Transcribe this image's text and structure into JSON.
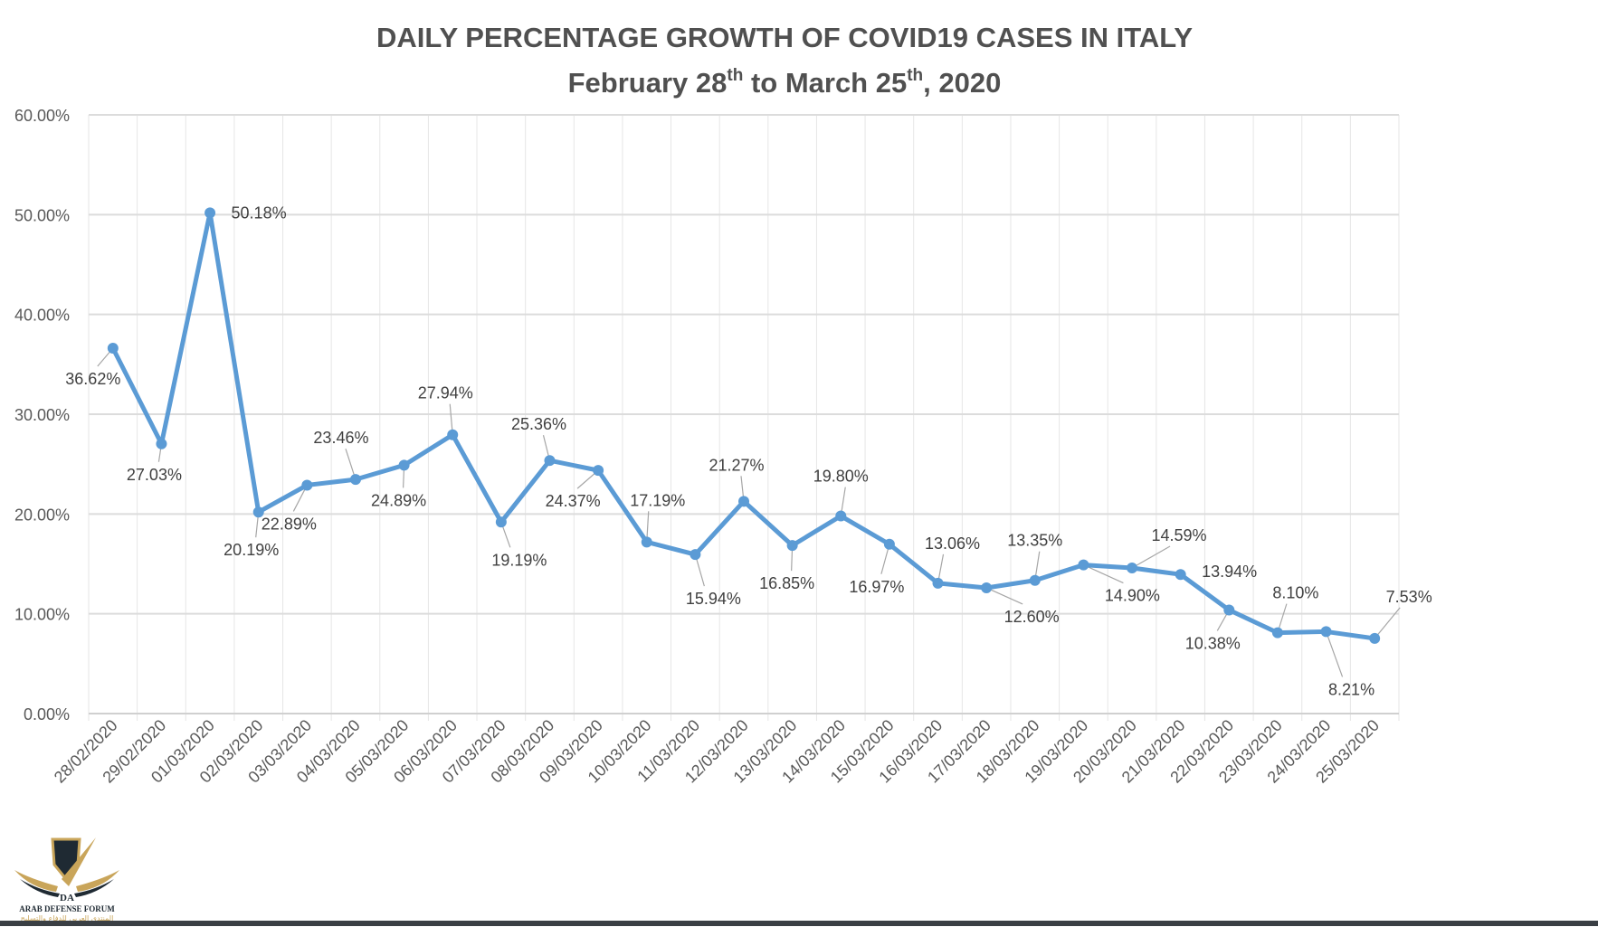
{
  "chart_data": {
    "type": "line",
    "title": "DAILY PERCENTAGE GROWTH OF COVID19 CASES IN ITALY",
    "subtitle": {
      "prefix": "February 28",
      "sup1": "th",
      "middle": " to March 25",
      "sup2": "th",
      "suffix": ", 2020"
    },
    "xlabel": "",
    "ylabel": "",
    "ylim": [
      0,
      0.6
    ],
    "yticks": [
      0,
      0.1,
      0.2,
      0.3,
      0.4,
      0.5,
      0.6
    ],
    "ytick_labels": [
      "0.00%",
      "10.00%",
      "20.00%",
      "30.00%",
      "40.00%",
      "50.00%",
      "60.00%"
    ],
    "grid": true,
    "legend": "none",
    "color": "#5b9bd5",
    "categories": [
      "28/02/2020",
      "29/02/2020",
      "01/03/2020",
      "02/03/2020",
      "03/03/2020",
      "04/03/2020",
      "05/03/2020",
      "06/03/2020",
      "07/03/2020",
      "08/03/2020",
      "09/03/2020",
      "10/03/2020",
      "11/03/2020",
      "12/03/2020",
      "13/03/2020",
      "14/03/2020",
      "15/03/2020",
      "16/03/2020",
      "17/03/2020",
      "18/03/2020",
      "19/03/2020",
      "20/03/2020",
      "21/03/2020",
      "22/03/2020",
      "23/03/2020",
      "24/03/2020",
      "25/03/2020"
    ],
    "series": [
      {
        "name": "Daily percentage growth",
        "values": [
          0.3662,
          0.2703,
          0.5018,
          0.2019,
          0.2289,
          0.2346,
          0.2489,
          0.2794,
          0.1919,
          0.2536,
          0.2437,
          0.1719,
          0.1594,
          0.2127,
          0.1685,
          0.198,
          0.1697,
          0.1306,
          0.126,
          0.1335,
          0.149,
          0.1459,
          0.1394,
          0.1038,
          0.081,
          0.0821,
          0.0753
        ],
        "labels": [
          "36.62%",
          "27.03%",
          "50.18%",
          "20.19%",
          "22.89%",
          "23.46%",
          "24.89%",
          "27.94%",
          "19.19%",
          "25.36%",
          "24.37%",
          "17.19%",
          "15.94%",
          "21.27%",
          "16.85%",
          "19.80%",
          "16.97%",
          "13.06%",
          "12.60%",
          "13.35%",
          "14.90%",
          "14.59%",
          "13.94%",
          "10.38%",
          "8.10%",
          "8.21%",
          "7.53%"
        ]
      }
    ]
  },
  "watermark": {
    "name": "ARAB DEFENSE FORUM",
    "arabic": "المنتدى العربي للدفاع والتسليح",
    "initials": "DA"
  }
}
